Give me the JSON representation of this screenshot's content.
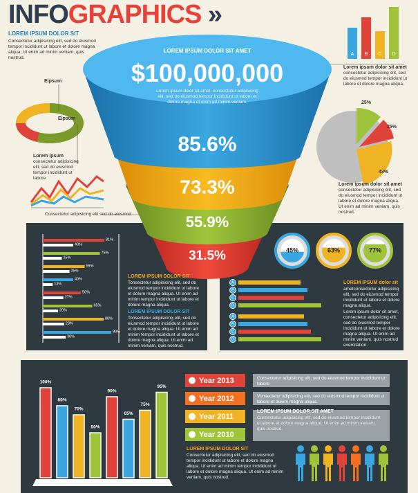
{
  "header": {
    "title_a": "INFO",
    "title_b": "GRAPHICS",
    "subtitle": "LOREM IPSUM DOLOR SIT",
    "text": "Consectetur adipisicing elit, sed do eiusmod tempor incididunt ut labore et dolore magna aliqua. Ut enim ad minim veniam, quis nostrud."
  },
  "funnel": {
    "heading": "LOREM IPSUM DOLOR SIT AMET",
    "amount": "$100,000,000",
    "text": "Lorem ipsum dolor sit amet, consectetur adipisicing elit, sed do eiusmod tempor incididunt ut labore et dolore magna et enim ad minim veniam.",
    "levels": [
      "85.6%",
      "73.3%",
      "55.9%",
      "31.5%"
    ]
  },
  "ring": {
    "labels": [
      "Eipsum",
      "Eipsum"
    ],
    "caption_title": "Lorem ipsum",
    "caption": "consectetur adipisicing elit, sed do eiusmod tempor incididunt ut labore"
  },
  "line_chart": {
    "caption": "Consectetur adipisicing elit sed do eiusmod"
  },
  "top_columns": {
    "labels": [
      "A",
      "B",
      "C",
      "D"
    ],
    "caption_title": "Lorem ipsum dolor sit amet",
    "caption": "consectetur adipisicing elit, sed do eiusmod tempor incididunt ut labore et dolore magna aliqua."
  },
  "pie": {
    "labels": [
      "25%",
      "25%",
      "43%"
    ],
    "caption_title": "Lorem ipsum dolor sit amet",
    "caption": "consectetur adipisicing elit, sed do eiusmod tempor incididunt ut labore et dolore magna aliqua. Ut enim ad minim veniam, quis nostrud."
  },
  "bar_panel": {
    "values": [
      81,
      40,
      75,
      25,
      55,
      35,
      40,
      13,
      50,
      27,
      65,
      20,
      80,
      28,
      90,
      30
    ],
    "value_labels": [
      "81%",
      "40%",
      "75%",
      "25%",
      "55%",
      "35%",
      "40%",
      "13%",
      "50%",
      "27%",
      "65%",
      "20%",
      "80%",
      "28%",
      "90%",
      "30%"
    ],
    "heading_1": "LOREM IPSUM DOLOR SIT",
    "text_1": "Tonsectetur adipisicing elit, sed do eiusmod tempor incididunt ut labore et dolore magna aliqua. Ut enim ad minim tempor incididunt ut labore et dolore magna aliqua.",
    "heading_2": "LOREM IPSUM DOLOR SIT",
    "text_2": "Tonsectetur adipisicing elit, sed do eiusmod tempor incididunt ut labore et dolore magna aliqua. Ut enim ad minim tempor incididunt ut labore et dolore magna aliqua. Ut enim ad minim veniam, quis nostrud."
  },
  "circles": {
    "values": [
      45,
      63,
      77
    ],
    "value_labels": [
      "45%",
      "63%",
      "77%"
    ]
  },
  "abcd_panel": {
    "letters": [
      "A",
      "B",
      "C",
      "D"
    ],
    "heading": "LOREM IPSUM dolor sit",
    "text_1": "ametconsectetur adipisicing elit, sed do eiusmod tempor incididunt ut labore et dolore magna aliqua.",
    "text_2": "Lorem ipsum dolor sit amet, consectetur adipisicing elit, sed do eiusmod tempor incididunt ut labore et dolore magna aliqua. Ut enim ad minim veniam, quis nostrud exercitation."
  },
  "bottom_columns": {
    "values": [
      100,
      80,
      70,
      50,
      90,
      65,
      75,
      95
    ],
    "value_labels": [
      "100%",
      "80%",
      "70%",
      "50%",
      "90%",
      "65%",
      "75%",
      "95%"
    ],
    "heading": "LOREM IPSUM DOLOR SIT",
    "text": "Consectetur adipisicing elit, sed do eiusmod tempor incididunt ut labore et dolore magna aliqua. Ut enim ad minim tempor incididunt ut labore et dolore magna aliqua. Ut enim ad minim veniam, quis nostrud."
  },
  "years": {
    "items": [
      {
        "label": "Year 2013",
        "text": "Consectetur adipisicing elit, sed do eiusmod tempor incididunt ut labore"
      },
      {
        "label": "Year 2012",
        "text": "Vonsectetur adipisicing elit, sed do eiusmod tempor incididunt ut labore et dolore magna aliqua."
      },
      {
        "label": "Year 2011",
        "text": ""
      },
      {
        "label": "Year 2010",
        "text": ""
      }
    ],
    "heading": "LOREM IPSUM DOLOR SIT AMET",
    "text": "Consectetur adipisicing elit, sed do eiusmod tempor incididunt ut labore et dolore magna aliqua. Ut enim ad minim veniam, quis nostrud."
  }
}
